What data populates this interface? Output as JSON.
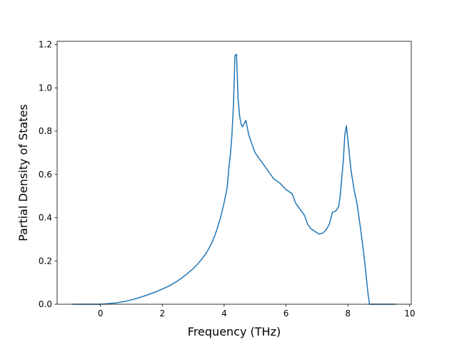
{
  "chart_data": {
    "type": "line",
    "title": "",
    "xlabel": "Frequency (THz)",
    "ylabel": "Partial Density of States",
    "xlim": [
      -1.4,
      10.05
    ],
    "ylim": [
      0.0,
      1.215
    ],
    "xticks": [
      0,
      2,
      4,
      6,
      8,
      10
    ],
    "xtick_labels": [
      "0",
      "2",
      "4",
      "6",
      "8",
      "10"
    ],
    "yticks": [
      0.0,
      0.2,
      0.4,
      0.6,
      0.8,
      1.0,
      1.2
    ],
    "ytick_labels": [
      "0.0",
      "0.2",
      "0.4",
      "0.6",
      "0.8",
      "1.0",
      "1.2"
    ],
    "grid": false,
    "line_color": "#1f77b4",
    "series": [
      {
        "x": [
          -0.9,
          -0.5,
          0.0,
          0.2,
          0.5,
          0.8,
          1.0,
          1.2,
          1.5,
          1.8,
          2.0,
          2.2,
          2.5,
          2.8,
          3.0,
          3.2,
          3.4,
          3.5,
          3.6,
          3.7,
          3.8,
          3.9,
          4.0,
          4.1,
          4.15,
          4.2,
          4.25,
          4.3,
          4.35,
          4.4,
          4.45,
          4.5,
          4.55,
          4.6,
          4.7,
          4.8,
          5.0,
          5.2,
          5.4,
          5.6,
          5.8,
          6.0,
          6.2,
          6.25,
          6.3,
          6.4,
          6.5,
          6.6,
          6.7,
          6.8,
          6.9,
          7.0,
          7.05,
          7.1,
          7.2,
          7.3,
          7.4,
          7.5,
          7.6,
          7.7,
          7.75,
          7.8,
          7.85,
          7.9,
          7.95,
          8.0,
          8.1,
          8.2,
          8.3,
          8.4,
          8.5,
          8.6,
          8.65,
          8.7,
          9.0,
          9.55
        ],
        "y": [
          0.0,
          0.0,
          0.0,
          0.002,
          0.006,
          0.013,
          0.02,
          0.028,
          0.042,
          0.058,
          0.07,
          0.083,
          0.108,
          0.14,
          0.165,
          0.195,
          0.232,
          0.256,
          0.284,
          0.318,
          0.36,
          0.41,
          0.47,
          0.54,
          0.63,
          0.69,
          0.78,
          0.92,
          1.15,
          1.155,
          0.95,
          0.87,
          0.83,
          0.82,
          0.85,
          0.78,
          0.7,
          0.66,
          0.62,
          0.58,
          0.56,
          0.53,
          0.51,
          0.49,
          0.47,
          0.45,
          0.43,
          0.41,
          0.37,
          0.35,
          0.34,
          0.33,
          0.325,
          0.325,
          0.33,
          0.345,
          0.37,
          0.425,
          0.43,
          0.45,
          0.5,
          0.58,
          0.66,
          0.78,
          0.825,
          0.76,
          0.62,
          0.53,
          0.46,
          0.36,
          0.25,
          0.12,
          0.05,
          0.0,
          0.0,
          0.0
        ]
      }
    ]
  }
}
